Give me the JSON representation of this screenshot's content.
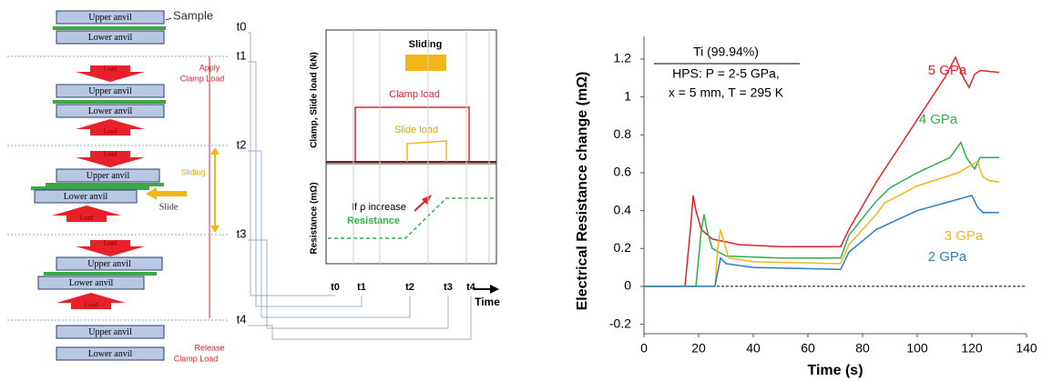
{
  "diagram": {
    "sample": "Sample",
    "upper_anvil": "Upper anvil",
    "lower_anvil": "Lower anvil",
    "load": "Load",
    "apply_clamp_load": [
      "Apply",
      "Clamp Load"
    ],
    "sliding": "Sliding",
    "slide": "Slide",
    "release_clamp_load": [
      "Release",
      "Clamp Load"
    ],
    "times": [
      "t0",
      "t1",
      "t2",
      "t3",
      "t4"
    ],
    "timing_chart": {
      "sliding": "Sliding",
      "clamp_load": "Clamp load",
      "slide_load": "Slide load",
      "load_axis": "Clamp, Slide load (kN)",
      "resistance_axis": "Resistance (mΩ)",
      "note": "If ρ increase",
      "resistance": "Resistance",
      "x_axis": "Time"
    }
  },
  "chart_data": {
    "type": "line",
    "annotation": [
      "Ti (99.94%)",
      "HPS: P = 2-5 GPa,",
      "x = 5 mm, T = 295 K"
    ],
    "xlabel": "Time (s)",
    "ylabel": "Electrical Resistance change (mΩ)",
    "xlim": [
      0,
      140
    ],
    "xticks": [
      0,
      20,
      40,
      60,
      80,
      100,
      120,
      140
    ],
    "ylim": [
      -0.25,
      1.32
    ],
    "yticks": [
      -0.2,
      0,
      0.2,
      0.4,
      0.6,
      0.8,
      1,
      1.2
    ],
    "series": [
      {
        "name": "5 GPa",
        "color": "#e8202a",
        "x": [
          0,
          15,
          17,
          18,
          19,
          21,
          25,
          35,
          50,
          72,
          75,
          85,
          100,
          110,
          114,
          117,
          119,
          121,
          123,
          130
        ],
        "values": [
          0,
          0,
          0.3,
          0.48,
          0.4,
          0.3,
          0.25,
          0.22,
          0.21,
          0.21,
          0.3,
          0.55,
          0.88,
          1.1,
          1.21,
          1.1,
          1.05,
          1.12,
          1.14,
          1.13
        ]
      },
      {
        "name": "4 GPa",
        "color": "#2db04b",
        "x": [
          0,
          19,
          21,
          22,
          23,
          25,
          30,
          50,
          72,
          75,
          85,
          90,
          100,
          112,
          116,
          118,
          121,
          123,
          130
        ],
        "values": [
          0,
          0,
          0.3,
          0.38,
          0.3,
          0.2,
          0.16,
          0.15,
          0.15,
          0.27,
          0.45,
          0.52,
          0.6,
          0.68,
          0.76,
          0.68,
          0.62,
          0.68,
          0.68
        ]
      },
      {
        "name": "3 GPa",
        "color": "#f2b619",
        "x": [
          0,
          26,
          27,
          28,
          29,
          31,
          40,
          72,
          75,
          85,
          88,
          100,
          115,
          122,
          124,
          126,
          130
        ],
        "values": [
          0,
          0,
          0.2,
          0.3,
          0.25,
          0.15,
          0.13,
          0.12,
          0.22,
          0.38,
          0.44,
          0.53,
          0.6,
          0.66,
          0.58,
          0.56,
          0.55
        ]
      },
      {
        "name": "2 GPa",
        "color": "#2a7fc0",
        "x": [
          0,
          26,
          28,
          30,
          40,
          72,
          75,
          85,
          100,
          115,
          120,
          122,
          124,
          130
        ],
        "values": [
          0,
          0,
          0.15,
          0.12,
          0.1,
          0.09,
          0.18,
          0.3,
          0.4,
          0.46,
          0.48,
          0.42,
          0.39,
          0.39
        ]
      }
    ]
  }
}
